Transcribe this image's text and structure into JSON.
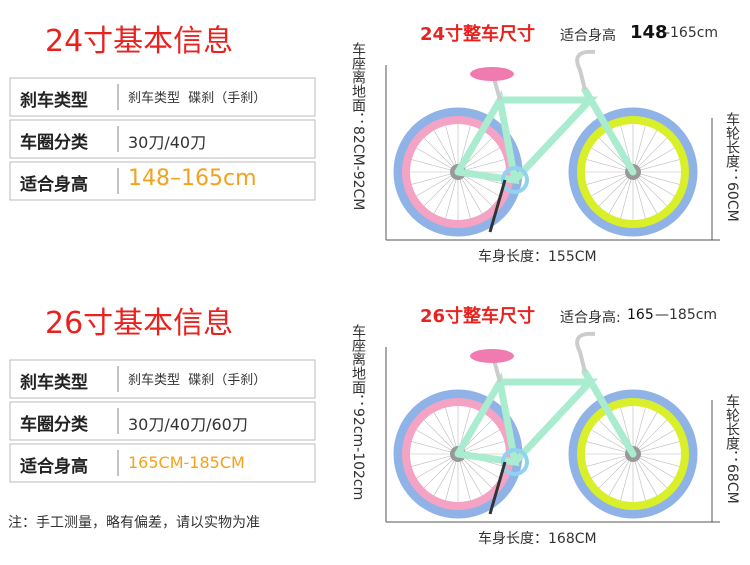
{
  "sections": [
    {
      "title": "24寸基本信息",
      "rows": [
        [
          "刹车类型",
          "刹车类型  碟刹（手刹）"
        ],
        [
          "车圈分类",
          "30刀/40刀"
        ],
        [
          "适合身高",
          "148–165cm"
        ]
      ],
      "diagram": {
        "title": "24寸整车尺寸",
        "height_label": "适合身高",
        "height_from": "148",
        "height_to": "–165cm",
        "seat": "车座离地面：82CM-92CM",
        "wheel": "车轮长度：60CM",
        "body": "车身长度：155CM"
      }
    },
    {
      "title": "26寸基本信息",
      "rows": [
        [
          "刹车类型",
          "刹车类型  碟刹（手刹）"
        ],
        [
          "车圈分类",
          "30刀/40刀/60刀"
        ],
        [
          "适合身高",
          "165CM-185CM"
        ]
      ],
      "diagram": {
        "title": "26寸整车尺寸",
        "height_label": "适合身高:",
        "height_from": "165",
        "height_to": "—185cm",
        "seat": "车座离地面：92cm-102cm",
        "wheel": "车轮长度：68CM",
        "body": "车身长度：168CM"
      }
    }
  ],
  "note": "注：手工测量，略有偏差，请以实物为准"
}
